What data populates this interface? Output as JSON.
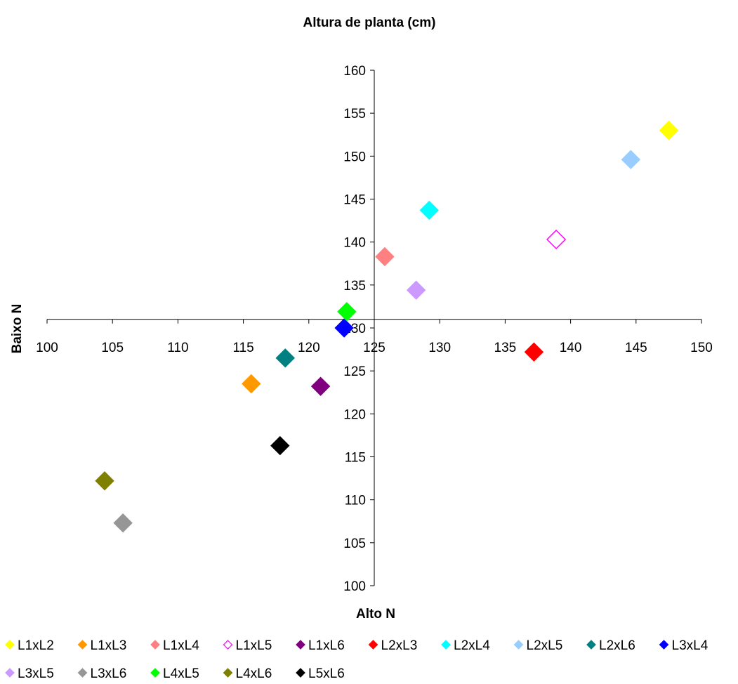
{
  "chart_data": {
    "type": "scatter",
    "title": "Altura de planta (cm)",
    "xlabel": "Alto N",
    "ylabel": "Baixo N",
    "xlim": [
      100,
      150
    ],
    "ylim": [
      100,
      160
    ],
    "xticks": [
      "100",
      "105",
      "110",
      "115",
      "120",
      "125",
      "130",
      "135",
      "140",
      "145",
      "150"
    ],
    "yticks": [
      "100",
      "105",
      "110",
      "115",
      "120",
      "125",
      "130",
      "135",
      "140",
      "145",
      "150",
      "155",
      "160"
    ],
    "axes_cross": {
      "x": 125,
      "y": 131
    },
    "grid": false,
    "legend_position": "bottom",
    "series": [
      {
        "name": "L1xL2",
        "color": "#ffff00",
        "marker": "diamond-filled",
        "x": 147.5,
        "y": 153.0
      },
      {
        "name": "L1xL3",
        "color": "#ff9900",
        "marker": "diamond-filled",
        "x": 115.6,
        "y": 123.5
      },
      {
        "name": "L1xL4",
        "color": "#ff8080",
        "marker": "diamond-filled",
        "x": 125.8,
        "y": 138.3
      },
      {
        "name": "L1xL5",
        "color": "#ff00ff",
        "marker": "diamond-open",
        "x": 138.9,
        "y": 140.3
      },
      {
        "name": "L1xL6",
        "color": "#800080",
        "marker": "diamond-filled",
        "x": 120.9,
        "y": 123.2
      },
      {
        "name": "L2xL3",
        "color": "#ff0000",
        "marker": "diamond-filled",
        "x": 137.2,
        "y": 127.2
      },
      {
        "name": "L2xL4",
        "color": "#00ffff",
        "marker": "diamond-filled",
        "x": 129.2,
        "y": 143.7
      },
      {
        "name": "L2xL5",
        "color": "#99ccff",
        "marker": "diamond-filled",
        "x": 144.6,
        "y": 149.6
      },
      {
        "name": "L2xL6",
        "color": "#008080",
        "marker": "diamond-filled",
        "x": 118.2,
        "y": 126.5
      },
      {
        "name": "L3xL4",
        "color": "#0000ff",
        "marker": "diamond-filled",
        "x": 122.7,
        "y": 130.0
      },
      {
        "name": "L3xL5",
        "color": "#cc99ff",
        "marker": "diamond-filled",
        "x": 128.2,
        "y": 134.4
      },
      {
        "name": "L3xL6",
        "color": "#969696",
        "marker": "diamond-filled",
        "x": 105.8,
        "y": 107.3
      },
      {
        "name": "L4xL5",
        "color": "#00ff00",
        "marker": "diamond-filled",
        "x": 122.9,
        "y": 131.9
      },
      {
        "name": "L4xL6",
        "color": "#808000",
        "marker": "diamond-filled",
        "x": 104.4,
        "y": 112.2
      },
      {
        "name": "L5xL6",
        "color": "#000000",
        "marker": "diamond-filled",
        "x": 117.8,
        "y": 116.3
      }
    ]
  }
}
